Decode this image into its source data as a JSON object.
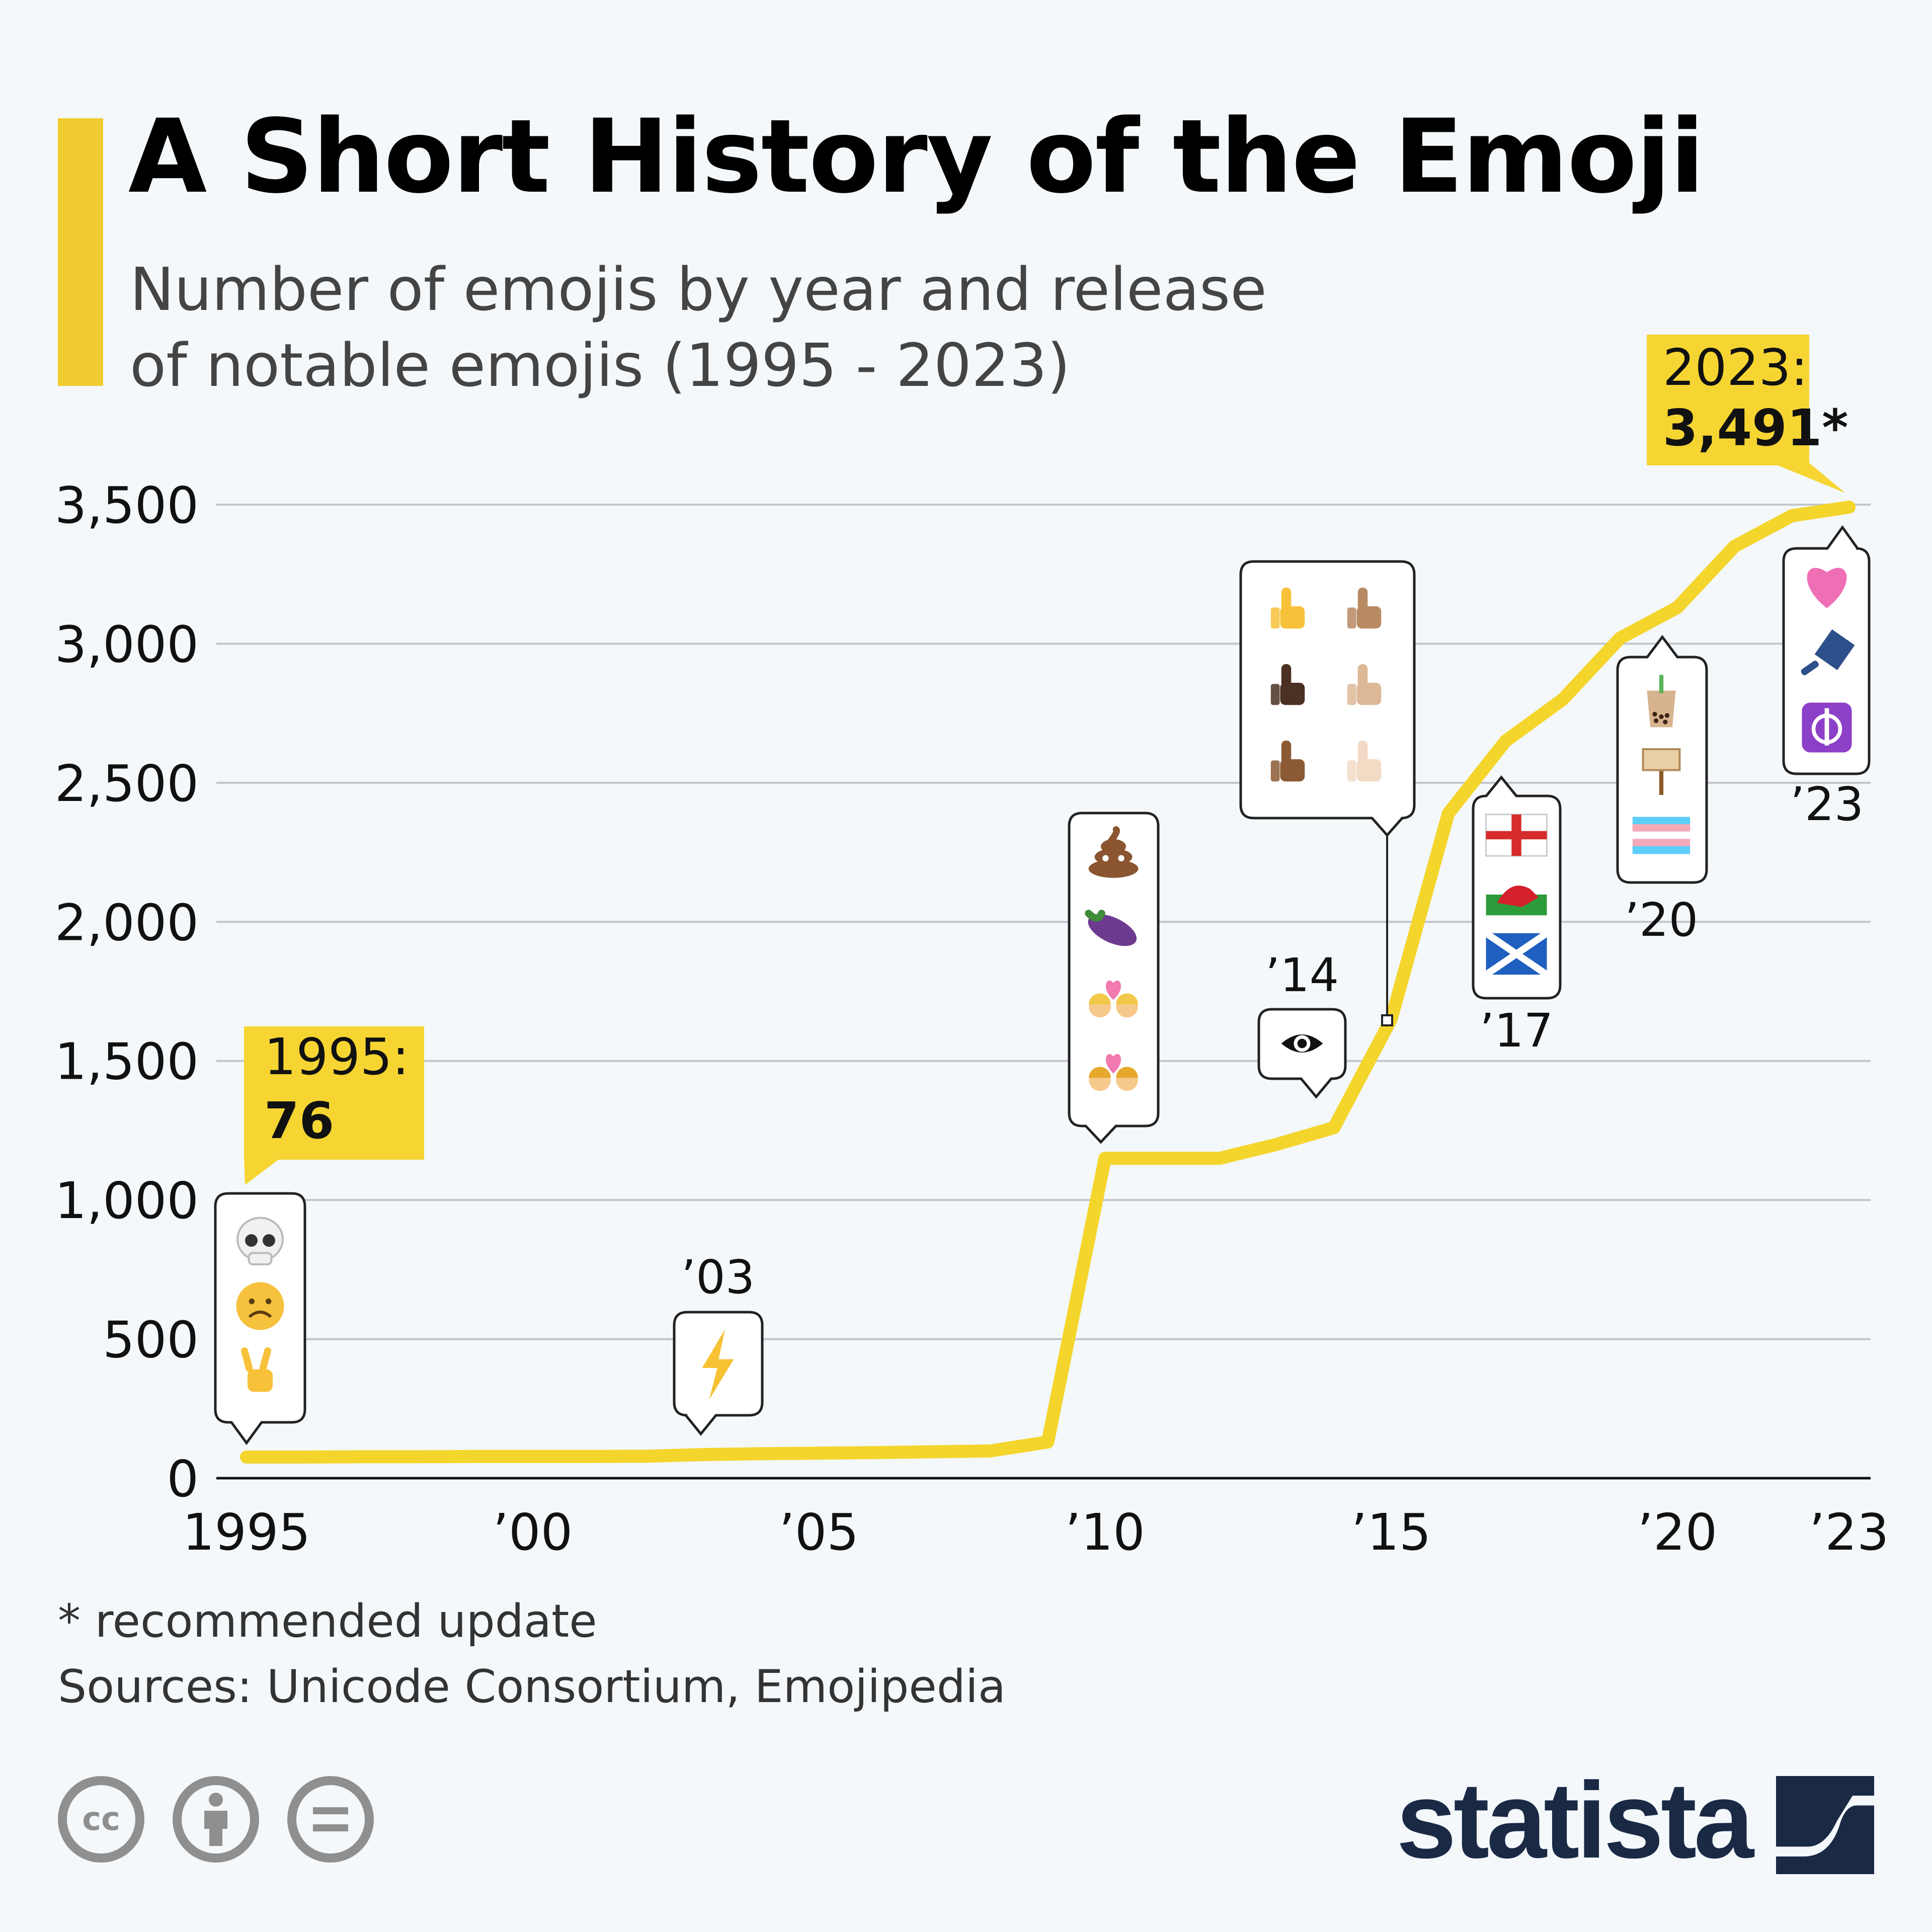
{
  "title": "A Short History of the Emoji",
  "subtitle_line1": "Number of emojis by year and release",
  "subtitle_line2": "of notable emojis (1995 - 2023)",
  "footnote": "* recommended update",
  "sources": "Sources: Unicode Consortium, Emojipedia",
  "brand": "statista",
  "colors": {
    "accent": "#f0cb2f",
    "line": "#f4d52c",
    "callout": "#f6d533",
    "brand": "#1a2a45",
    "grid": "#c2c6cc"
  },
  "license_icons": [
    "cc-icon",
    "by-person-icon",
    "nd-equals-icon"
  ],
  "chart_data": {
    "type": "line",
    "x": [
      1995,
      1996,
      1997,
      1998,
      1999,
      2000,
      2001,
      2002,
      2003,
      2004,
      2005,
      2006,
      2007,
      2008,
      2009,
      2010,
      2011,
      2012,
      2013,
      2014,
      2015,
      2016,
      2017,
      2018,
      2019,
      2020,
      2021,
      2022,
      2023
    ],
    "series": [
      {
        "values": [
          76,
          76,
          77,
          77,
          78,
          78,
          78,
          79,
          85,
          88,
          90,
          92,
          95,
          98,
          130,
          1150,
          1150,
          1150,
          1200,
          1260,
          1650,
          2390,
          2650,
          2800,
          3020,
          3130,
          3350,
          3460,
          3491
        ]
      }
    ],
    "xlim": [
      1995,
      2023
    ],
    "ylim": [
      0,
      3500
    ],
    "yticks": [
      0,
      500,
      1000,
      1500,
      2000,
      2500,
      3000,
      3500
    ],
    "ytick_labels": [
      "0",
      "500",
      "1,000",
      "1,500",
      "2,000",
      "2,500",
      "3,000",
      "3,500"
    ],
    "xticks": [
      1995,
      2000,
      2005,
      2010,
      2015,
      2020,
      2023
    ],
    "xtick_labels": [
      "1995",
      "’00",
      "’05",
      "’10",
      "’15",
      "’20",
      "’23"
    ],
    "grid": true,
    "callouts": [
      {
        "year_label": "1995:",
        "value_label": "76"
      },
      {
        "year_label": "2023:",
        "value_label": "3,491*"
      }
    ],
    "annotations": [
      {
        "year": 1995,
        "label": "",
        "emojis": [
          "skull",
          "frowning-face",
          "victory-hand"
        ]
      },
      {
        "year": 2003,
        "label": "’03",
        "emojis": [
          "high-voltage"
        ]
      },
      {
        "year": 2010,
        "label": "",
        "emojis": [
          "pile-of-poo",
          "eggplant",
          "couple-with-heart-men",
          "couple-with-heart-women"
        ]
      },
      {
        "year": 2014,
        "label": "’14",
        "emojis": [
          "eye-in-speech-bubble"
        ]
      },
      {
        "year": 2015,
        "label": "",
        "emojis": [
          "thumbs-up-default",
          "thumbs-up-medium",
          "thumbs-up-dark",
          "thumbs-up-medium-light",
          "thumbs-up-medium-dark",
          "thumbs-up-light"
        ]
      },
      {
        "year": 2017,
        "label": "’17",
        "emojis": [
          "flag-england",
          "flag-wales",
          "flag-scotland"
        ]
      },
      {
        "year": 2020,
        "label": "’20",
        "emojis": [
          "bubble-tea",
          "placard",
          "transgender-flag"
        ]
      },
      {
        "year": 2023,
        "label": "’23",
        "emojis": [
          "pink-heart",
          "hair-pick",
          "khanda"
        ]
      }
    ]
  }
}
